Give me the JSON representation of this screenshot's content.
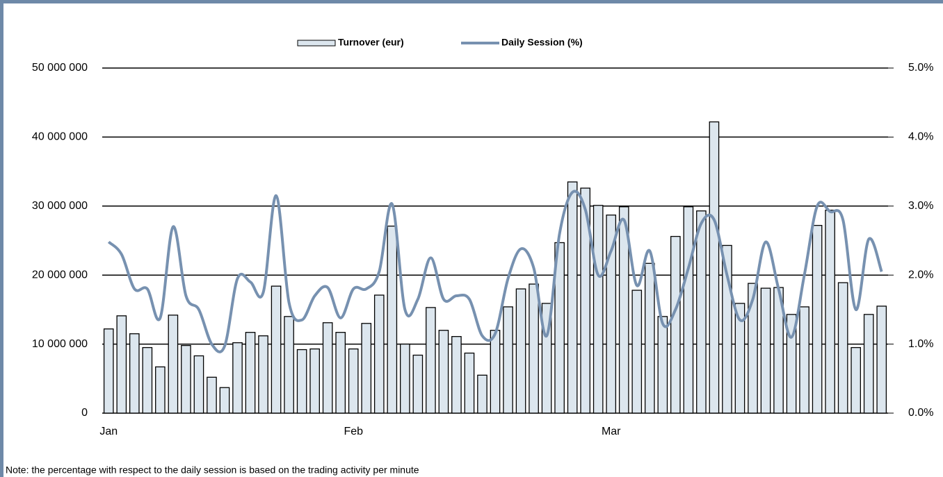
{
  "chart_data": {
    "type": "bar",
    "note": "Note: the percentage with respect to the daily session is based on the trading activity per minute",
    "categories": [
      "Jan",
      null,
      null,
      null,
      null,
      null,
      null,
      null,
      null,
      null,
      null,
      null,
      null,
      null,
      null,
      null,
      null,
      null,
      null,
      "Feb",
      null,
      null,
      null,
      null,
      null,
      null,
      null,
      null,
      null,
      null,
      null,
      null,
      null,
      null,
      null,
      null,
      null,
      null,
      null,
      "Mar",
      null,
      null,
      null,
      null,
      null,
      null,
      null,
      null,
      null,
      null,
      null,
      null,
      null,
      null,
      null,
      null,
      null,
      null,
      null,
      null,
      null
    ],
    "series": [
      {
        "name": "Turnover (eur)",
        "type": "bar",
        "color": "#dce6ee",
        "values": [
          12200000,
          14100000,
          11500000,
          9500000,
          6700000,
          14200000,
          9800000,
          8300000,
          5200000,
          3700000,
          10200000,
          11700000,
          11200000,
          18400000,
          14000000,
          9200000,
          9300000,
          13100000,
          11700000,
          9300000,
          13000000,
          17100000,
          27100000,
          10000000,
          8400000,
          15300000,
          12000000,
          11100000,
          8700000,
          5500000,
          12000000,
          15400000,
          18000000,
          18700000,
          15900000,
          24700000,
          33500000,
          32600000,
          30100000,
          28700000,
          29900000,
          17800000,
          21700000,
          14000000,
          25600000,
          29900000,
          29300000,
          42200000,
          24300000,
          15900000,
          18800000,
          18100000,
          18200000,
          14300000,
          15400000,
          27200000,
          29400000,
          18900000,
          9500000,
          14300000,
          15500000
        ]
      },
      {
        "name": "Daily Session (%)",
        "type": "line",
        "axis": "y2",
        "color": "#7791b0",
        "values": [
          2.48,
          2.3,
          1.8,
          1.8,
          1.38,
          2.7,
          1.7,
          1.5,
          1.0,
          0.97,
          1.95,
          1.9,
          1.75,
          3.15,
          1.6,
          1.35,
          1.7,
          1.82,
          1.38,
          1.8,
          1.8,
          2.05,
          3.03,
          1.5,
          1.65,
          2.25,
          1.65,
          1.7,
          1.65,
          1.12,
          1.15,
          1.95,
          2.38,
          2.1,
          1.12,
          2.6,
          3.2,
          2.95,
          2.0,
          2.35,
          2.8,
          1.85,
          2.35,
          1.3,
          1.5,
          2.1,
          2.75,
          2.8,
          2.0,
          1.35,
          1.65,
          2.48,
          1.8,
          1.1,
          2.0,
          3.0,
          2.92,
          2.8,
          1.5,
          2.52,
          2.05
        ]
      }
    ],
    "ylim": [
      0,
      50000000
    ],
    "yticks": [
      0,
      {
        "value": 10000000,
        "label": "10 000 000"
      },
      {
        "value": 20000000,
        "label": "20 000 000"
      },
      {
        "value": 30000000,
        "label": "30 000 000"
      },
      {
        "value": 40000000,
        "label": "40 000 000"
      },
      {
        "value": 50000000,
        "label": "50 000 000"
      }
    ],
    "y2lim": [
      0,
      5
    ],
    "y2ticks": [
      {
        "value": 0,
        "label": "0.0%"
      },
      {
        "value": 1,
        "label": "1.0%"
      },
      {
        "value": 2,
        "label": "2.0%"
      },
      {
        "value": 3,
        "label": "3.0%"
      },
      {
        "value": 4,
        "label": "4.0%"
      },
      {
        "value": 5,
        "label": "5.0%"
      }
    ],
    "grid": true,
    "legend": "top"
  }
}
